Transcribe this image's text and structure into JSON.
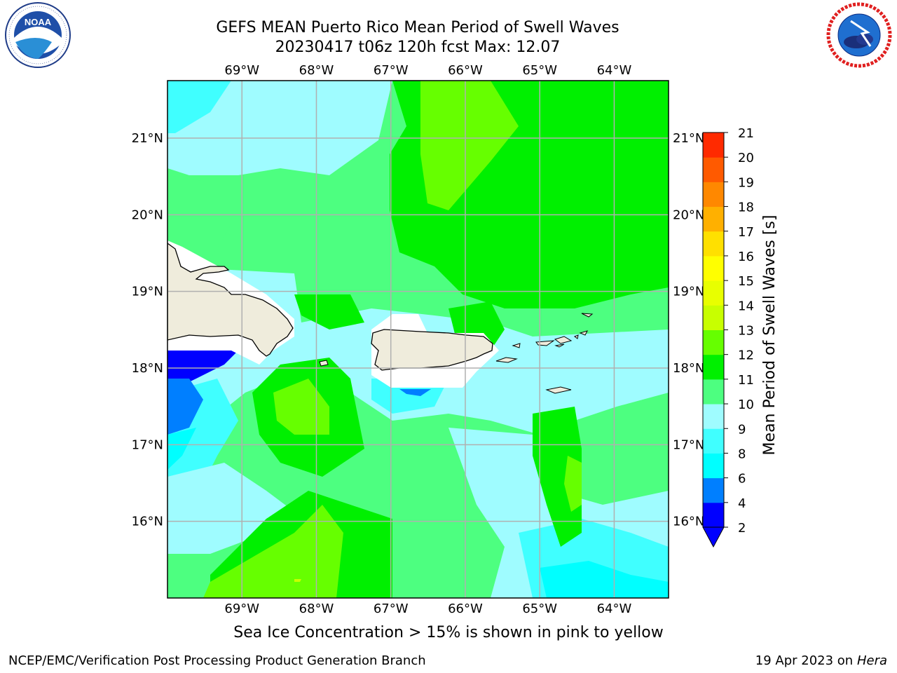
{
  "header": {
    "title_line1": "GEFS MEAN Puerto Rico Mean Period of Swell Waves",
    "title_line2": "20230417 t06z 120h fcst   Max: 12.07"
  },
  "logos": {
    "left": {
      "icon": "noaa-logo",
      "text": "NOAA",
      "ring_text": "NATIONAL OCEANIC AND ATMOSPHERIC ADMINISTRATION · U.S. DEPARTMENT OF COMMERCE"
    },
    "right": {
      "icon": "nws-logo",
      "ring_text": "NATIONAL WEATHER SERVICE"
    }
  },
  "map": {
    "lon_labels": [
      "69°W",
      "68°W",
      "67°W",
      "66°W",
      "65°W",
      "64°W"
    ],
    "lat_labels": [
      "21°N",
      "20°N",
      "19°N",
      "18°N",
      "17°N",
      "16°N"
    ],
    "lon_values": [
      -69,
      -68,
      -67,
      -66,
      -65,
      -64
    ],
    "lat_values": [
      21,
      20,
      19,
      18,
      17,
      16
    ],
    "extent": {
      "lon_min": -70.0,
      "lon_max": -63.27,
      "lat_min": 15.0,
      "lat_max": 21.75
    },
    "land_color": "#efecdc",
    "grid_color": "#b0b0b0"
  },
  "colorbar": {
    "label": "Mean Period of Swell Waves [s]",
    "ticks": [
      "2",
      "4",
      "6",
      "8",
      "9",
      "10",
      "11",
      "12",
      "13",
      "14",
      "15",
      "16",
      "17",
      "18",
      "19",
      "20",
      "21"
    ],
    "colors": [
      "#0000ff",
      "#007fff",
      "#00ffff",
      "#40ffff",
      "#9ffcff",
      "#4dff80",
      "#00f000",
      "#66ff00",
      "#c8ff00",
      "#e8ff00",
      "#ffff00",
      "#ffe000",
      "#ffb000",
      "#ff8800",
      "#ff5a00",
      "#ff2a00",
      "#ff0000"
    ],
    "under_color": "#0000ff"
  },
  "bottom_note": "Sea Ice Concentration > 15% is shown in pink to yellow",
  "footer": {
    "left": "NCEP/EMC/Verification Post Processing Product Generation Branch",
    "right_date": "19 Apr 2023 on",
    "right_system": "Hera"
  }
}
